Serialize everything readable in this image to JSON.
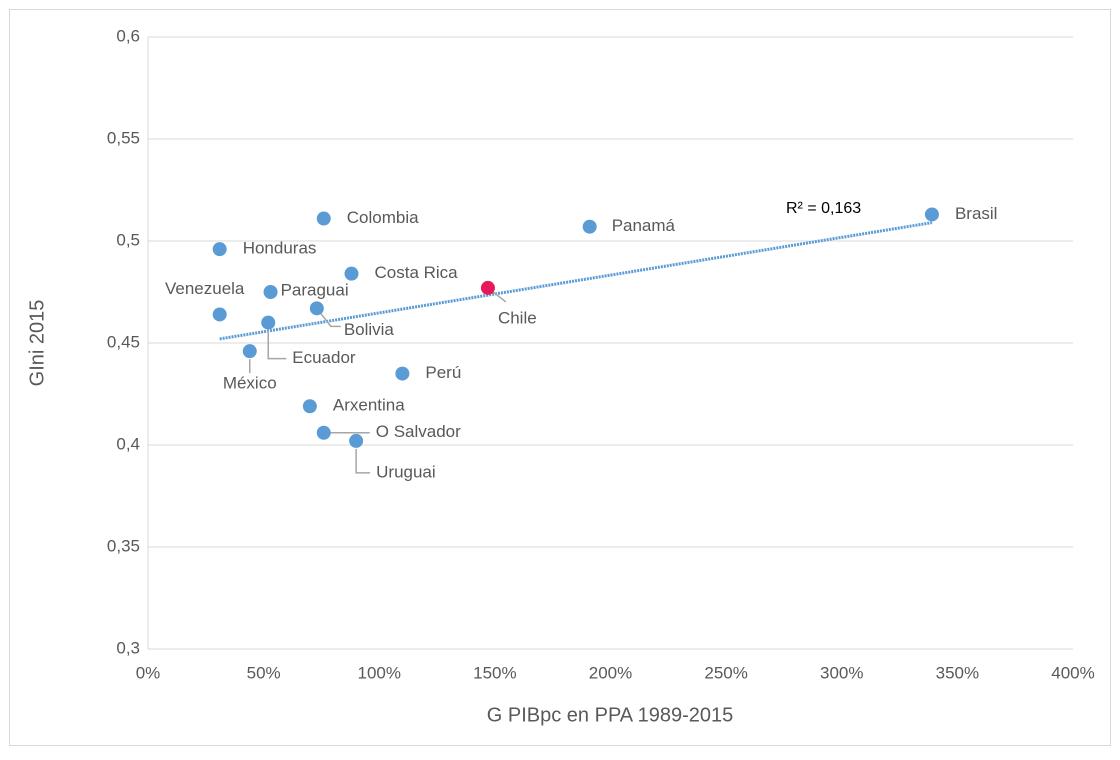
{
  "chart_data": {
    "type": "scatter",
    "x_label": "G PIBpc en PPA 1989-2015",
    "y_label": "GIni 2015",
    "labels": [
      "Colombia",
      "Panamá",
      "Brasil",
      "Honduras",
      "Costa Rica",
      "Chile",
      "Paraguai",
      "Bolivia",
      "Venezuela",
      "Ecuador",
      "México",
      "Perú",
      "Arxentina",
      "O Salvador",
      "Uruguai"
    ],
    "x": [
      76,
      191,
      339,
      31,
      88,
      147,
      53,
      73,
      31,
      52,
      44,
      110,
      70,
      76,
      90
    ],
    "y": [
      0.511,
      0.507,
      0.513,
      0.496,
      0.484,
      0.477,
      0.475,
      0.467,
      0.464,
      0.46,
      0.446,
      0.435,
      0.419,
      0.406,
      0.402
    ],
    "colors": [
      "#5b9bd5",
      "#5b9bd5",
      "#5b9bd5",
      "#5b9bd5",
      "#5b9bd5",
      "#e6195a",
      "#5b9bd5",
      "#5b9bd5",
      "#5b9bd5",
      "#5b9bd5",
      "#5b9bd5",
      "#5b9bd5",
      "#5b9bd5",
      "#5b9bd5",
      "#5b9bd5"
    ],
    "trendline": {
      "label": "R² = 0,163",
      "x": [
        31,
        339
      ],
      "y": [
        0.452,
        0.509
      ],
      "color": "#5b9bd5"
    },
    "xlim": [
      0,
      400
    ],
    "ylim": [
      0.3,
      0.6
    ],
    "xticks": [
      {
        "value": 0,
        "label": "0%"
      },
      {
        "value": 50,
        "label": "50%"
      },
      {
        "value": 100,
        "label": "100%"
      },
      {
        "value": 150,
        "label": "150%"
      },
      {
        "value": 200,
        "label": "200%"
      },
      {
        "value": 250,
        "label": "250%"
      },
      {
        "value": 300,
        "label": "300%"
      },
      {
        "value": 350,
        "label": "350%"
      },
      {
        "value": 400,
        "label": "400%"
      }
    ],
    "yticks": [
      {
        "value": 0.3,
        "label": "0,3"
      },
      {
        "value": 0.35,
        "label": "0,35"
      },
      {
        "value": 0.4,
        "label": "0,4"
      },
      {
        "value": 0.45,
        "label": "0,45"
      },
      {
        "value": 0.5,
        "label": "0,5"
      },
      {
        "value": 0.55,
        "label": "0,55"
      },
      {
        "value": 0.6,
        "label": "0,6"
      }
    ],
    "grid": true
  }
}
